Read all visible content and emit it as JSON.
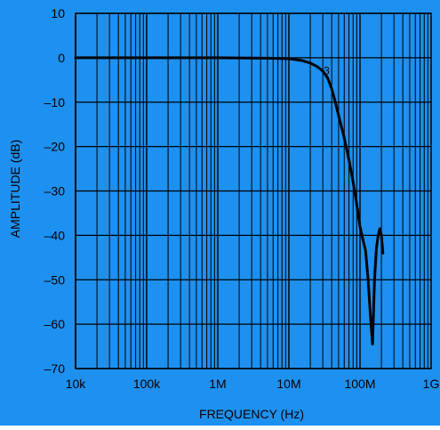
{
  "background_color": "#1E90F0",
  "plot_color": "#1E90F0",
  "line_color": "#000000",
  "chart_data": {
    "type": "line",
    "title": "",
    "xlabel": "FREQUENCY (Hz)",
    "ylabel": "AMPLITUDE (dB)",
    "x_scale": "log",
    "xlim": [
      10000,
      1000000000
    ],
    "ylim": [
      -70,
      10
    ],
    "grid": true,
    "legend": "none",
    "x_ticks": [
      {
        "value": 10000,
        "label": "10k"
      },
      {
        "value": 100000,
        "label": "100k"
      },
      {
        "value": 1000000,
        "label": "1M"
      },
      {
        "value": 10000000,
        "label": "10M"
      },
      {
        "value": 100000000,
        "label": "100M"
      },
      {
        "value": 1000000000,
        "label": "1G"
      }
    ],
    "y_ticks": [
      {
        "value": 10,
        "label": "10"
      },
      {
        "value": 0,
        "label": "0"
      },
      {
        "value": -10,
        "label": "–10"
      },
      {
        "value": -20,
        "label": "–20"
      },
      {
        "value": -30,
        "label": "–30"
      },
      {
        "value": -40,
        "label": "–40"
      },
      {
        "value": -50,
        "label": "–50"
      },
      {
        "value": -60,
        "label": "–60"
      },
      {
        "value": -70,
        "label": "–70"
      }
    ],
    "annotations": [
      {
        "text": "3",
        "x": 34000000,
        "y": -2.7
      }
    ],
    "series": [
      {
        "x": [
          10000,
          100000,
          1000000,
          5000000,
          10000000,
          15000000,
          20000000,
          25000000,
          30000000,
          35000000,
          40000000,
          45000000,
          50000000,
          60000000,
          70000000,
          80000000,
          90000000,
          100000000,
          110000000,
          120000000,
          130000000,
          140000000,
          150000000,
          160000000,
          170000000,
          180000000,
          190000000,
          200000000,
          210000000
        ],
        "y": [
          0,
          0,
          0,
          -0.1,
          -0.2,
          -0.6,
          -1.2,
          -2,
          -3,
          -4.5,
          -7,
          -10,
          -13,
          -18,
          -23,
          -28,
          -33,
          -38,
          -41,
          -43.5,
          -50,
          -58,
          -64.5,
          -50,
          -43,
          -40,
          -38.5,
          -40,
          -44
        ]
      }
    ]
  }
}
